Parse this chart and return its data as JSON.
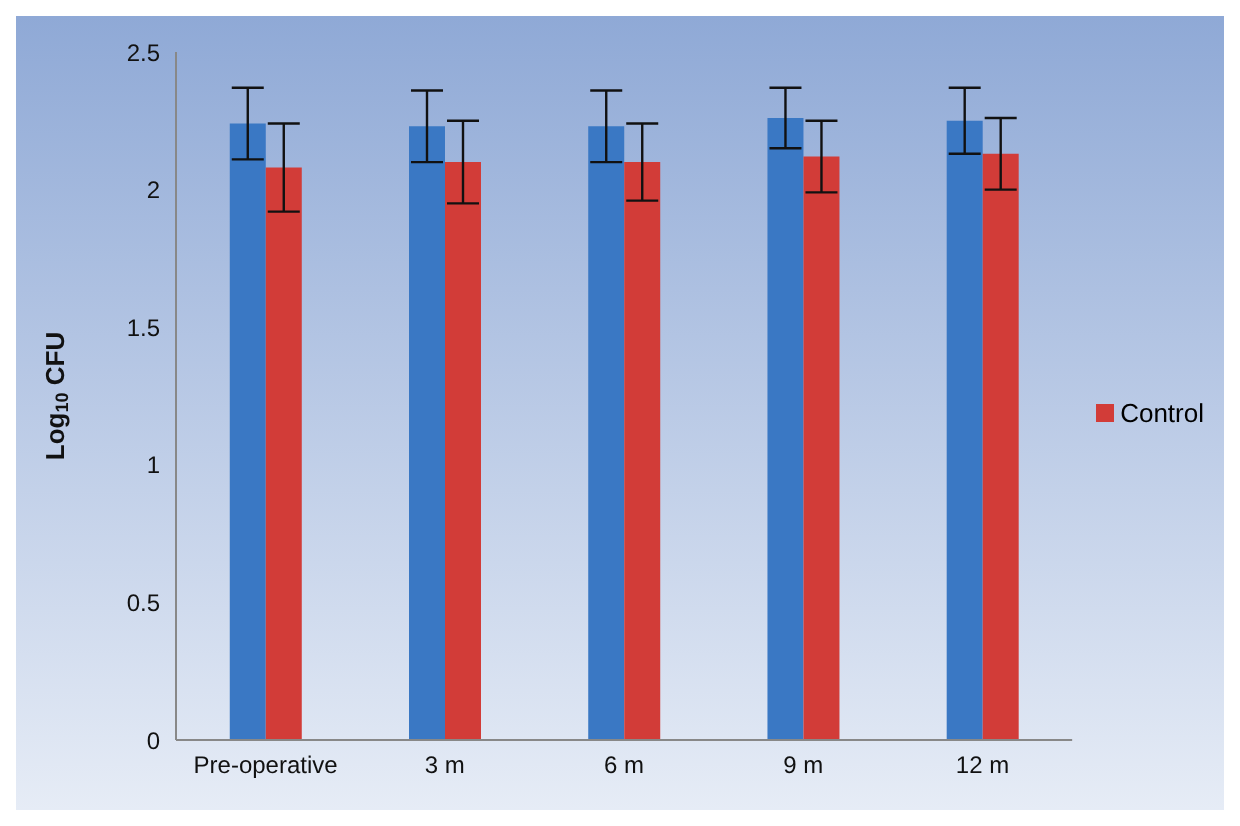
{
  "chart_data": {
    "type": "bar",
    "ylabel": "Log$_{10}$ CFU",
    "categories": [
      "Pre-operative",
      "3 m",
      "6 m",
      "9 m",
      "12 m"
    ],
    "series": [
      {
        "color": "#3a78c4",
        "values": [
          2.24,
          2.23,
          2.23,
          2.26,
          2.25
        ],
        "errors": [
          0.13,
          0.13,
          0.13,
          0.11,
          0.12
        ]
      },
      {
        "name": "Control",
        "color": "#d23c38",
        "values": [
          2.08,
          2.1,
          2.1,
          2.12,
          2.13
        ],
        "errors": [
          0.16,
          0.15,
          0.14,
          0.13,
          0.13
        ]
      }
    ],
    "ylim": [
      0,
      2.5
    ],
    "yticks": [
      0,
      0.5,
      1,
      1.5,
      2,
      2.5
    ],
    "grid": false,
    "legend": "right"
  }
}
